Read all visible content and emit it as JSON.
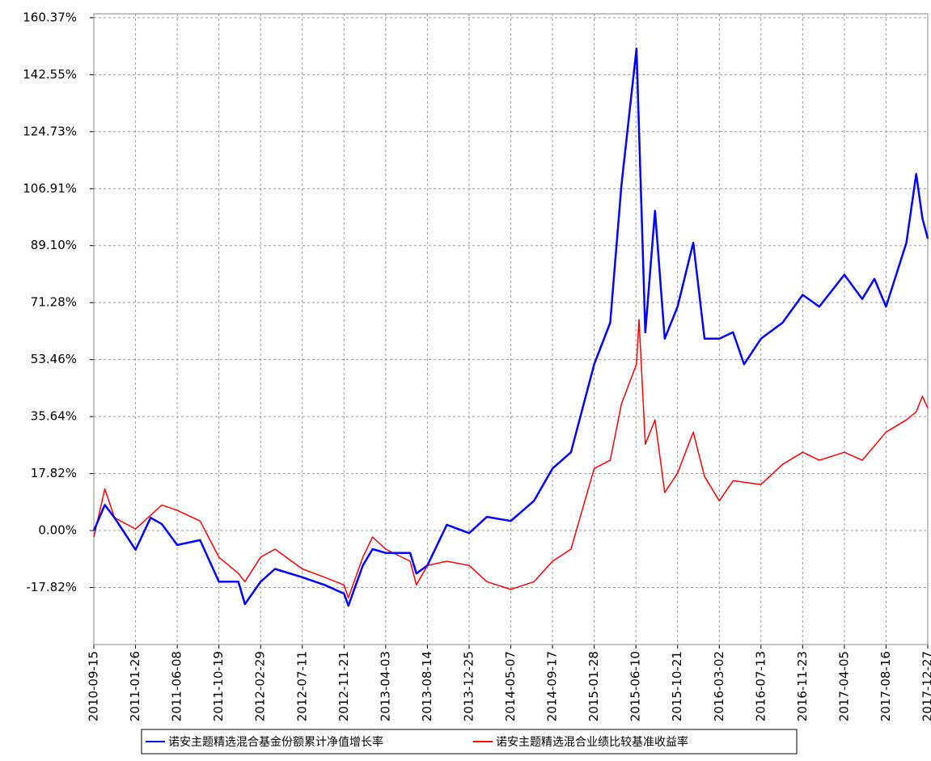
{
  "chart_data": {
    "type": "line",
    "ylim": [
      -35.64,
      161.6
    ],
    "yticks": [
      {
        "value": -17.82,
        "label": "-17.82%"
      },
      {
        "value": 0,
        "label": "0.00%"
      },
      {
        "value": 17.82,
        "label": "17.82%"
      },
      {
        "value": 35.64,
        "label": "35.64%"
      },
      {
        "value": 53.46,
        "label": "53.46%"
      },
      {
        "value": 71.28,
        "label": "71.28%"
      },
      {
        "value": 89.1,
        "label": "89.10%"
      },
      {
        "value": 106.91,
        "label": "106.91%"
      },
      {
        "value": 124.73,
        "label": "124.73%"
      },
      {
        "value": 142.55,
        "label": "142.55%"
      },
      {
        "value": 160.37,
        "label": "160.37%"
      }
    ],
    "xlim": [
      "2010-09-15",
      "2017-12-27"
    ],
    "xticks": [
      "2010-09-15",
      "2011-01-26",
      "2011-06-08",
      "2011-10-19",
      "2012-02-29",
      "2012-07-11",
      "2012-11-21",
      "2013-04-03",
      "2013-08-14",
      "2013-12-25",
      "2014-05-07",
      "2014-09-17",
      "2015-01-28",
      "2015-06-10",
      "2015-10-21",
      "2016-03-02",
      "2016-07-13",
      "2016-11-23",
      "2017-04-05",
      "2017-08-16",
      "2017-12-27"
    ],
    "grid": true,
    "series": [
      {
        "name": "诺安主题精选混合基金份额累计净值增长率",
        "color": "#0000ff",
        "x": [
          "2010-09-15",
          "2010-10-20",
          "2010-11-20",
          "2011-01-26",
          "2011-03-15",
          "2011-04-20",
          "2011-06-08",
          "2011-08-20",
          "2011-10-19",
          "2011-12-20",
          "2012-01-10",
          "2012-02-29",
          "2012-04-15",
          "2012-07-11",
          "2012-09-20",
          "2012-11-21",
          "2012-12-05",
          "2013-01-20",
          "2013-02-20",
          "2013-04-03",
          "2013-06-20",
          "2013-07-10",
          "2013-08-14",
          "2013-10-15",
          "2013-12-25",
          "2014-02-20",
          "2014-05-07",
          "2014-07-20",
          "2014-09-17",
          "2014-11-15",
          "2015-01-28",
          "2015-03-20",
          "2015-04-25",
          "2015-06-12",
          "2015-07-10",
          "2015-08-10",
          "2015-09-10",
          "2015-10-21",
          "2015-12-10",
          "2016-01-15",
          "2016-03-02",
          "2016-04-15",
          "2016-05-20",
          "2016-07-13",
          "2016-09-20",
          "2016-11-23",
          "2017-01-15",
          "2017-04-05",
          "2017-06-01",
          "2017-07-10",
          "2017-08-16",
          "2017-10-20",
          "2017-11-20",
          "2017-12-10",
          "2017-12-27"
        ],
        "values": [
          0,
          8,
          4,
          -6,
          4,
          2,
          -4.5,
          -3,
          -16,
          -16,
          -23,
          -16,
          -12,
          -14.6,
          -17,
          -19.7,
          -23.5,
          -10.9,
          -5.8,
          -7,
          -7,
          -13.4,
          -10.9,
          1.8,
          -0.8,
          4.3,
          3,
          9.3,
          19.4,
          24.5,
          52,
          65,
          108,
          150.7,
          62,
          100,
          60,
          70,
          90,
          60,
          60,
          62,
          52,
          60,
          65,
          73.7,
          70,
          80,
          72.4,
          78.7,
          70,
          90,
          111.5,
          97.6,
          91.3
        ]
      },
      {
        "name": "诺安主题精选混合业绩比较基准收益率",
        "color": "#ff0000",
        "x": [
          "2010-09-15",
          "2010-10-20",
          "2010-11-20",
          "2011-01-26",
          "2011-04-20",
          "2011-06-08",
          "2011-08-20",
          "2011-10-19",
          "2011-12-20",
          "2012-01-10",
          "2012-02-29",
          "2012-04-15",
          "2012-07-11",
          "2012-09-20",
          "2012-11-21",
          "2012-12-05",
          "2013-01-20",
          "2013-02-20",
          "2013-04-03",
          "2013-06-20",
          "2013-07-10",
          "2013-08-14",
          "2013-10-15",
          "2013-12-25",
          "2014-02-20",
          "2014-05-07",
          "2014-07-20",
          "2014-09-17",
          "2014-11-15",
          "2015-01-28",
          "2015-03-20",
          "2015-04-25",
          "2015-06-12",
          "2015-06-20",
          "2015-07-10",
          "2015-08-10",
          "2015-09-10",
          "2015-10-21",
          "2015-12-10",
          "2016-01-15",
          "2016-03-02",
          "2016-04-15",
          "2016-07-13",
          "2016-09-20",
          "2016-11-23",
          "2017-01-15",
          "2017-04-05",
          "2017-06-01",
          "2017-08-16",
          "2017-10-20",
          "2017-11-20",
          "2017-12-10",
          "2017-12-27"
        ],
        "values": [
          -2,
          13,
          4,
          0.5,
          8,
          6.3,
          3,
          -8.3,
          -13.4,
          -16,
          -8.3,
          -5.8,
          -12,
          -14.6,
          -17,
          -21,
          -8.3,
          -2,
          -5.8,
          -9.6,
          -17,
          -10.9,
          -9.6,
          -10.9,
          -16,
          -18.4,
          -16,
          -9.6,
          -5.8,
          19.4,
          22,
          39.6,
          52,
          66,
          27,
          34.6,
          11.9,
          18,
          30.8,
          16.9,
          9.3,
          15.6,
          14.4,
          20.7,
          24.5,
          22,
          24.5,
          22,
          30.8,
          34.6,
          37.1,
          42,
          38.3
        ]
      }
    ]
  }
}
